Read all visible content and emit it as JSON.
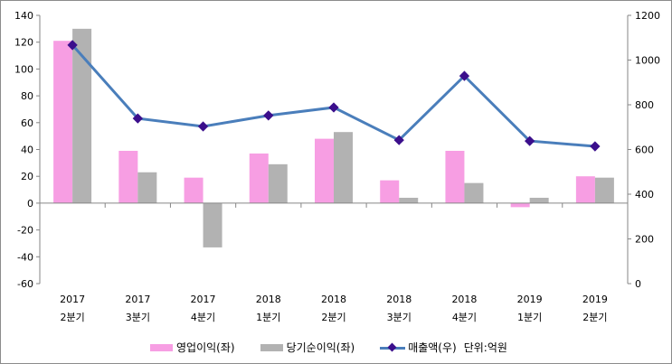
{
  "chart_data": {
    "type": "bar+line",
    "title": "",
    "categories": [
      [
        "2017",
        "2분기"
      ],
      [
        "2017",
        "3분기"
      ],
      [
        "2017",
        "4분기"
      ],
      [
        "2018",
        "1분기"
      ],
      [
        "2018",
        "2분기"
      ],
      [
        "2018",
        "3분기"
      ],
      [
        "2018",
        "4분기"
      ],
      [
        "2019",
        "1분기"
      ],
      [
        "2019",
        "2분기"
      ]
    ],
    "series": [
      {
        "name": "영업이익(좌)",
        "type": "bar",
        "axis": "left",
        "color": "#f79ee3",
        "values": [
          121,
          39,
          19,
          37,
          48,
          17,
          39,
          -3,
          20
        ]
      },
      {
        "name": "당기순이익(좌)",
        "type": "bar",
        "axis": "left",
        "color": "#b2b2b2",
        "values": [
          130,
          23,
          -33,
          29,
          53,
          4,
          15,
          4,
          19
        ]
      },
      {
        "name": "매출액(우)",
        "type": "line",
        "axis": "right",
        "color": "#4a7ebb",
        "marker_color": "#3b0f8c",
        "values": [
          1067,
          739,
          703,
          752,
          788,
          642,
          929,
          638,
          614
        ]
      }
    ],
    "left_axis": {
      "min": -60,
      "max": 140,
      "step": 20,
      "ticks": [
        "-60",
        "-40",
        "-20",
        "0",
        "20",
        "40",
        "60",
        "80",
        "100",
        "120",
        "140"
      ]
    },
    "right_axis": {
      "min": 0,
      "max": 1200,
      "step": 200,
      "ticks": [
        "0",
        "200",
        "400",
        "600",
        "800",
        "1000",
        "1200"
      ]
    },
    "unit_note": "단위:억원",
    "legend_position": "bottom",
    "grid": false
  }
}
